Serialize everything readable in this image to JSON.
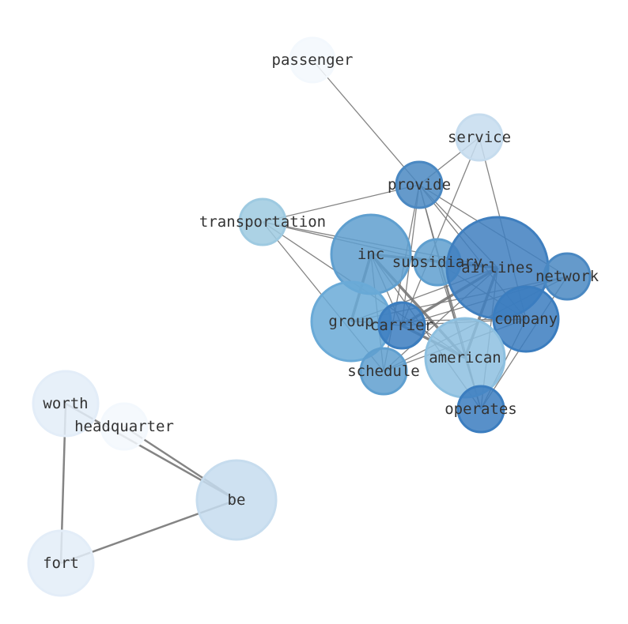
{
  "nodes": [
    {
      "id": "passenger",
      "label": "passenger",
      "color": "#f3f8fd"
    },
    {
      "id": "service",
      "label": "service",
      "color": "#c6dcee"
    },
    {
      "id": "provide",
      "label": "provide",
      "color": "#4a88c2"
    },
    {
      "id": "transportation",
      "label": "transportation",
      "color": "#9ecae1"
    },
    {
      "id": "inc",
      "label": "inc",
      "color": "#5f9fcf"
    },
    {
      "id": "subsidiary",
      "label": "subsidiary",
      "color": "#5f9fcf"
    },
    {
      "id": "airlines",
      "label": "airlines",
      "color": "#3f7fbf"
    },
    {
      "id": "network",
      "label": "network",
      "color": "#4a88c2"
    },
    {
      "id": "group",
      "label": "group",
      "color": "#6aaad7"
    },
    {
      "id": "carrier",
      "label": "carrier",
      "color": "#3b7dbf"
    },
    {
      "id": "company",
      "label": "company",
      "color": "#3b7dbf"
    },
    {
      "id": "american",
      "label": "american",
      "color": "#8dc0e0"
    },
    {
      "id": "schedule",
      "label": "schedule",
      "color": "#5f9fcf"
    },
    {
      "id": "operates",
      "label": "operates",
      "color": "#3b7dbf"
    },
    {
      "id": "worth",
      "label": "worth",
      "color": "#e3edf8"
    },
    {
      "id": "headquarter",
      "label": "headquarter",
      "color": "#f3f8fd"
    },
    {
      "id": "be",
      "label": "be",
      "color": "#c6dcee"
    },
    {
      "id": "fort",
      "label": "fort",
      "color": "#e3edf8"
    }
  ],
  "edges": [
    [
      "passenger",
      "provide",
      1
    ],
    [
      "service",
      "provide",
      1
    ],
    [
      "service",
      "carrier",
      1
    ],
    [
      "service",
      "company",
      1
    ],
    [
      "provide",
      "transportation",
      1
    ],
    [
      "provide",
      "carrier",
      1
    ],
    [
      "provide",
      "schedule",
      1
    ],
    [
      "provide",
      "airlines",
      1
    ],
    [
      "provide",
      "network",
      1
    ],
    [
      "provide",
      "company",
      1
    ],
    [
      "provide",
      "american",
      1
    ],
    [
      "provide",
      "operates",
      1
    ],
    [
      "transportation",
      "subsidiary",
      1
    ],
    [
      "transportation",
      "airlines",
      1
    ],
    [
      "transportation",
      "schedule",
      1
    ],
    [
      "transportation",
      "american",
      1
    ],
    [
      "inc",
      "group",
      3
    ],
    [
      "inc",
      "carrier",
      1
    ],
    [
      "inc",
      "american",
      3
    ],
    [
      "inc",
      "airlines",
      3
    ],
    [
      "inc",
      "schedule",
      1
    ],
    [
      "inc",
      "operates",
      1
    ],
    [
      "group",
      "airlines",
      1
    ],
    [
      "group",
      "company",
      1
    ],
    [
      "group",
      "network",
      1
    ],
    [
      "group",
      "carrier",
      1
    ],
    [
      "carrier",
      "airlines",
      3
    ],
    [
      "carrier",
      "american",
      3
    ],
    [
      "carrier",
      "company",
      1
    ],
    [
      "carrier",
      "network",
      1
    ],
    [
      "american",
      "airlines",
      3
    ],
    [
      "american",
      "operates",
      1
    ],
    [
      "schedule",
      "airlines",
      1
    ],
    [
      "schedule",
      "company",
      1
    ],
    [
      "schedule",
      "network",
      1
    ],
    [
      "operates",
      "airlines",
      1
    ],
    [
      "operates",
      "company",
      1
    ],
    [
      "operates",
      "network",
      1
    ],
    [
      "operates",
      "subsidiary",
      1
    ],
    [
      "subsidiary",
      "company",
      1
    ],
    [
      "subsidiary",
      "airlines",
      1
    ],
    [
      "worth",
      "fort",
      2
    ],
    [
      "worth",
      "be",
      2
    ],
    [
      "headquarter",
      "be",
      2
    ],
    [
      "fort",
      "be",
      2
    ]
  ]
}
